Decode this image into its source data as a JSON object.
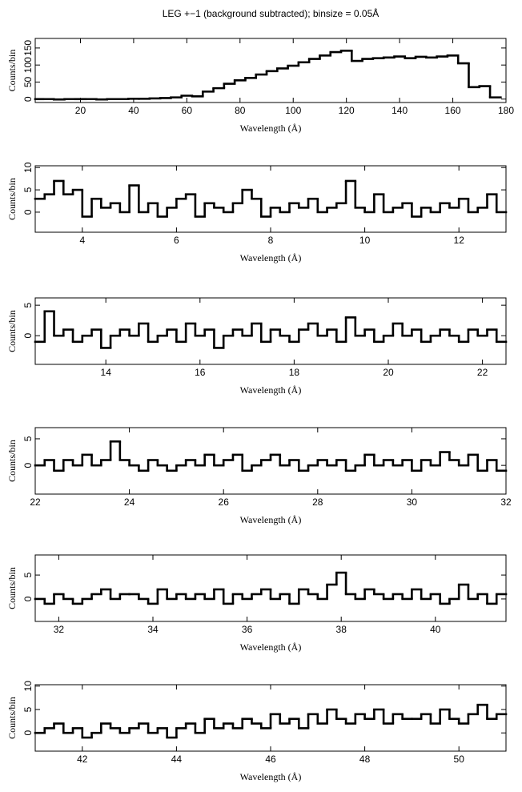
{
  "chart_data": [
    {
      "type": "step",
      "title": "LEG +−1 (background subtracted); binsize = 0.05Å",
      "xlabel": "Wavelength (Å)",
      "ylabel": "Counts/bin",
      "xlim": [
        3,
        180
      ],
      "ylim": [
        -10,
        178
      ],
      "xticks": [
        20,
        40,
        60,
        80,
        100,
        120,
        140,
        160,
        180
      ],
      "yticks": [
        0,
        50,
        100,
        150
      ],
      "color": "#000000",
      "x": [
        4,
        8,
        12,
        16,
        20,
        24,
        28,
        32,
        36,
        40,
        44,
        48,
        52,
        56,
        60,
        64,
        68,
        72,
        76,
        80,
        84,
        88,
        92,
        96,
        100,
        104,
        108,
        112,
        116,
        120,
        124,
        128,
        132,
        136,
        140,
        144,
        148,
        152,
        156,
        160,
        164,
        168,
        172,
        176
      ],
      "values": [
        0,
        0,
        -1,
        0,
        0,
        0,
        -1,
        0,
        0,
        1,
        1,
        2,
        3,
        5,
        10,
        8,
        22,
        32,
        45,
        55,
        62,
        72,
        82,
        90,
        98,
        108,
        118,
        128,
        138,
        142,
        112,
        118,
        120,
        122,
        125,
        120,
        124,
        122,
        125,
        128,
        105,
        35,
        38,
        5
      ]
    },
    {
      "type": "step",
      "xlabel": "Wavelength (Å)",
      "ylabel": "Counts/bin",
      "xlim": [
        3,
        13
      ],
      "ylim": [
        -4.5,
        10.4
      ],
      "xticks": [
        4,
        6,
        8,
        10,
        12
      ],
      "yticks": [
        0,
        5,
        10
      ],
      "color": "#000000",
      "x": [
        3.1,
        3.3,
        3.5,
        3.7,
        3.9,
        4.1,
        4.3,
        4.5,
        4.7,
        4.9,
        5.1,
        5.3,
        5.5,
        5.7,
        5.9,
        6.1,
        6.3,
        6.5,
        6.7,
        6.9,
        7.1,
        7.3,
        7.5,
        7.7,
        7.9,
        8.1,
        8.3,
        8.5,
        8.7,
        8.9,
        9.1,
        9.3,
        9.5,
        9.7,
        9.9,
        10.1,
        10.3,
        10.5,
        10.7,
        10.9,
        11.1,
        11.3,
        11.5,
        11.7,
        11.9,
        12.1,
        12.3,
        12.5,
        12.7,
        12.9
      ],
      "values": [
        3,
        4,
        7,
        4,
        5,
        -1,
        3,
        1,
        2,
        0,
        6,
        0,
        2,
        -1,
        1,
        3,
        4,
        -1,
        2,
        1,
        0,
        2,
        5,
        3,
        -1,
        1,
        0,
        2,
        1,
        3,
        0,
        1,
        2,
        7,
        1,
        0,
        4,
        0,
        1,
        2,
        -1,
        1,
        0,
        2,
        1,
        3,
        0,
        1,
        4,
        0
      ]
    },
    {
      "type": "step",
      "xlabel": "Wavelength (Å)",
      "ylabel": "Counts/bin",
      "xlim": [
        12.5,
        22.5
      ],
      "ylim": [
        -4.7,
        6.2
      ],
      "xticks": [
        14,
        16,
        18,
        20,
        22
      ],
      "yticks": [
        0,
        5
      ],
      "color": "#000000",
      "x": [
        12.6,
        12.8,
        13.0,
        13.2,
        13.4,
        13.6,
        13.8,
        14.0,
        14.2,
        14.4,
        14.6,
        14.8,
        15.0,
        15.2,
        15.4,
        15.6,
        15.8,
        16.0,
        16.2,
        16.4,
        16.6,
        16.8,
        17.0,
        17.2,
        17.4,
        17.6,
        17.8,
        18.0,
        18.2,
        18.4,
        18.6,
        18.8,
        19.0,
        19.2,
        19.4,
        19.6,
        19.8,
        20.0,
        20.2,
        20.4,
        20.6,
        20.8,
        21.0,
        21.2,
        21.4,
        21.6,
        21.8,
        22.0,
        22.2,
        22.4
      ],
      "values": [
        -1,
        4,
        0,
        1,
        -1,
        0,
        1,
        -2,
        0,
        1,
        0,
        2,
        -1,
        0,
        1,
        -1,
        2,
        0,
        1,
        -2,
        0,
        1,
        0,
        2,
        -1,
        1,
        0,
        -1,
        1,
        2,
        0,
        1,
        -1,
        3,
        0,
        1,
        -1,
        0,
        2,
        0,
        1,
        -1,
        0,
        1,
        0,
        -1,
        1,
        0,
        1,
        -1
      ]
    },
    {
      "type": "step",
      "xlabel": "Wavelength (Å)",
      "ylabel": "Counts/bin",
      "xlim": [
        22,
        32
      ],
      "ylim": [
        -5.4,
        7.1
      ],
      "xticks": [
        22,
        24,
        26,
        28,
        30,
        32
      ],
      "yticks": [
        0,
        5
      ],
      "color": "#000000",
      "x": [
        22.1,
        22.3,
        22.5,
        22.7,
        22.9,
        23.1,
        23.3,
        23.5,
        23.7,
        23.9,
        24.1,
        24.3,
        24.5,
        24.7,
        24.9,
        25.1,
        25.3,
        25.5,
        25.7,
        25.9,
        26.1,
        26.3,
        26.5,
        26.7,
        26.9,
        27.1,
        27.3,
        27.5,
        27.7,
        27.9,
        28.1,
        28.3,
        28.5,
        28.7,
        28.9,
        29.1,
        29.3,
        29.5,
        29.7,
        29.9,
        30.1,
        30.3,
        30.5,
        30.7,
        30.9,
        31.1,
        31.3,
        31.5,
        31.7,
        31.9
      ],
      "values": [
        0,
        1,
        -1,
        1,
        0,
        2,
        0,
        1,
        4.5,
        1,
        0,
        -1,
        1,
        0,
        -1,
        0,
        1,
        0,
        2,
        0,
        1,
        2,
        -1,
        0,
        1,
        2,
        0,
        1,
        -1,
        0,
        1,
        0,
        1,
        -1,
        0,
        2,
        0,
        1,
        0,
        1,
        -1,
        1,
        0,
        2.5,
        1,
        0,
        2,
        -1,
        1,
        -1
      ]
    },
    {
      "type": "step",
      "xlabel": "Wavelength (Å)",
      "ylabel": "Counts/bin",
      "xlim": [
        31.5,
        41.5
      ],
      "ylim": [
        -4.7,
        9.2
      ],
      "xticks": [
        32,
        34,
        36,
        38,
        40
      ],
      "yticks": [
        0,
        5
      ],
      "color": "#000000",
      "x": [
        31.6,
        31.8,
        32.0,
        32.2,
        32.4,
        32.6,
        32.8,
        33.0,
        33.2,
        33.4,
        33.6,
        33.8,
        34.0,
        34.2,
        34.4,
        34.6,
        34.8,
        35.0,
        35.2,
        35.4,
        35.6,
        35.8,
        36.0,
        36.2,
        36.4,
        36.6,
        36.8,
        37.0,
        37.2,
        37.4,
        37.6,
        37.8,
        38.0,
        38.2,
        38.4,
        38.6,
        38.8,
        39.0,
        39.2,
        39.4,
        39.6,
        39.8,
        40.0,
        40.2,
        40.4,
        40.6,
        40.8,
        41.0,
        41.2,
        41.4
      ],
      "values": [
        0,
        -1,
        1,
        0,
        -1,
        0,
        1,
        2,
        0,
        1,
        1,
        0,
        -1,
        2,
        0,
        1,
        0,
        1,
        0,
        2,
        -1,
        1,
        0,
        1,
        2,
        0,
        1,
        -1,
        2,
        1,
        0,
        3,
        5.5,
        1,
        0,
        2,
        1,
        0,
        1,
        0,
        2,
        0,
        1,
        -1,
        0,
        3,
        0,
        1,
        -1,
        1
      ]
    },
    {
      "type": "step",
      "xlabel": "Wavelength (Å)",
      "ylabel": "Counts/bin",
      "xlim": [
        41,
        51
      ],
      "ylim": [
        -3.9,
        10.3
      ],
      "xticks": [
        42,
        44,
        46,
        48,
        50
      ],
      "yticks": [
        0,
        5,
        10
      ],
      "color": "#000000",
      "x": [
        41.1,
        41.3,
        41.5,
        41.7,
        41.9,
        42.1,
        42.3,
        42.5,
        42.7,
        42.9,
        43.1,
        43.3,
        43.5,
        43.7,
        43.9,
        44.1,
        44.3,
        44.5,
        44.7,
        44.9,
        45.1,
        45.3,
        45.5,
        45.7,
        45.9,
        46.1,
        46.3,
        46.5,
        46.7,
        46.9,
        47.1,
        47.3,
        47.5,
        47.7,
        47.9,
        48.1,
        48.3,
        48.5,
        48.7,
        48.9,
        49.1,
        49.3,
        49.5,
        49.7,
        49.9,
        50.1,
        50.3,
        50.5,
        50.7,
        50.9
      ],
      "values": [
        0,
        1,
        2,
        0,
        1,
        -1,
        0,
        2,
        1,
        0,
        1,
        2,
        0,
        1,
        -1,
        1,
        2,
        0,
        3,
        1,
        2,
        1,
        3,
        2,
        1,
        4,
        2,
        3,
        1,
        4,
        2,
        5,
        3,
        2,
        4,
        3,
        5,
        2,
        4,
        3,
        3,
        4,
        2,
        5,
        3,
        2,
        4,
        6,
        3,
        4
      ]
    }
  ]
}
